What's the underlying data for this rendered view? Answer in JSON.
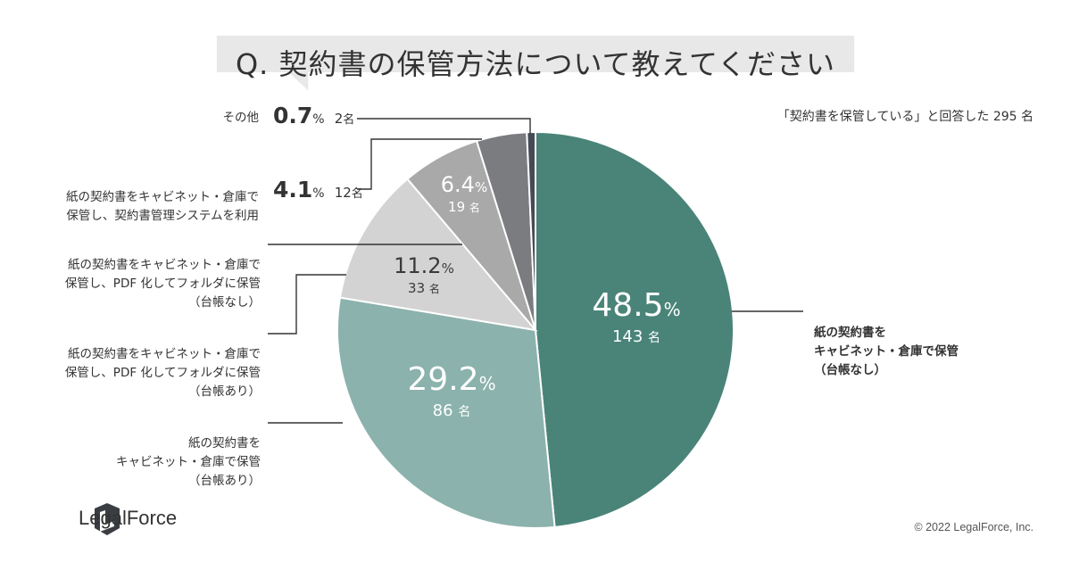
{
  "header": {
    "title": "Q. 契約書の保管方法について教えてください",
    "respondents": "「契約書を保管している」と回答した 295 名"
  },
  "chart_data": {
    "type": "pie",
    "title": "Q. 契約書の保管方法について教えてください",
    "slices": [
      {
        "label": "紙の契約書を\nキャビネット・倉庫で保管\n（台帳なし）",
        "value": 48.5,
        "count": 143,
        "color": "#4a8479"
      },
      {
        "label": "紙の契約書を\nキャビネット・倉庫で保管\n（台帳あり）",
        "value": 29.2,
        "count": 86,
        "color": "#8bb2ac"
      },
      {
        "label": "紙の契約書をキャビネット・倉庫で\n保管し、PDF 化してフォルダに保管\n（台帳あり）",
        "value": 11.2,
        "count": 33,
        "color": "#d3d3d3"
      },
      {
        "label": "紙の契約書をキャビネット・倉庫で\n保管し、PDF 化してフォルダに保管\n（台帳なし）",
        "value": 6.4,
        "count": 19,
        "color": "#a9a9a9"
      },
      {
        "label": "紙の契約書をキャビネット・倉庫で\n保管し、契約書管理システムを利用",
        "value": 4.1,
        "count": 12,
        "color": "#7a7c80"
      },
      {
        "label": "その他",
        "value": 0.7,
        "count": 2,
        "color": "#454a55"
      }
    ],
    "percent_sign": "%",
    "count_unit": "名"
  },
  "footer": {
    "logo_text": "LegalForce",
    "copyright": "© 2022 LegalForce, Inc."
  }
}
